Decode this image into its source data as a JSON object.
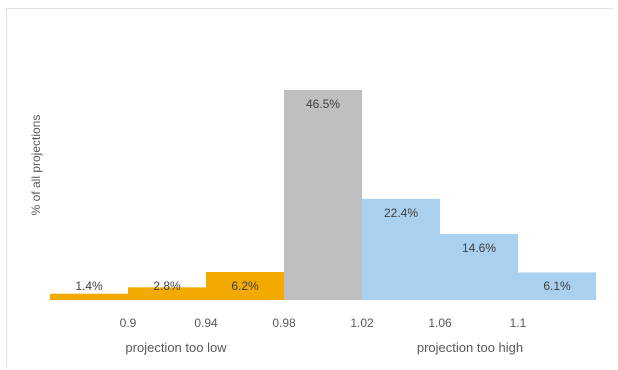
{
  "chart_data": {
    "type": "bar",
    "title": "",
    "xlabel": "",
    "ylabel": "% of all projections",
    "ylim": [
      0,
      50
    ],
    "ticks": [
      "0.9",
      "0.94",
      "0.98",
      "1.02",
      "1.06",
      "1.1"
    ],
    "groups": [
      "projection too low",
      "projection too high"
    ],
    "bars": [
      {
        "label": "1.4%",
        "value": 1.4,
        "color": "#f2a900"
      },
      {
        "label": "2.8%",
        "value": 2.8,
        "color": "#f2a900"
      },
      {
        "label": "6.2%",
        "value": 6.2,
        "color": "#f2a900"
      },
      {
        "label": "46.5%",
        "value": 46.5,
        "color": "#bfbfbf"
      },
      {
        "label": "22.4%",
        "value": 22.4,
        "color": "#a9d0ee"
      },
      {
        "label": "14.6%",
        "value": 14.6,
        "color": "#a9d0ee"
      },
      {
        "label": "6.1%",
        "value": 6.1,
        "color": "#a9d0ee"
      }
    ],
    "grid": false,
    "legend": "none"
  }
}
